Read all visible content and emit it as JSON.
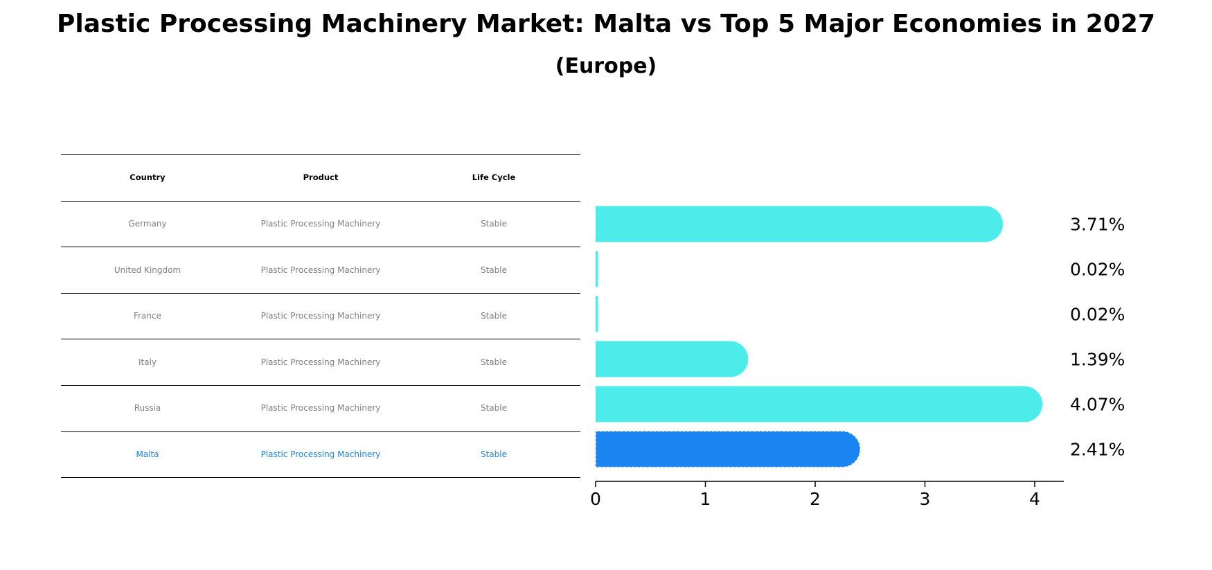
{
  "title": "Plastic Processing Machinery Market: Malta vs Top 5 Major Economies in 2027",
  "subtitle": "(Europe)",
  "table": {
    "headers": [
      "Country",
      "Product",
      "Life Cycle"
    ],
    "rows": [
      {
        "country": "Germany",
        "product": "Plastic Processing Machinery",
        "life_cycle": "Stable"
      },
      {
        "country": "United Kingdom",
        "product": "Plastic Processing Machinery",
        "life_cycle": "Stable"
      },
      {
        "country": "France",
        "product": "Plastic Processing Machinery",
        "life_cycle": "Stable"
      },
      {
        "country": "Italy",
        "product": "Plastic Processing Machinery",
        "life_cycle": "Stable"
      },
      {
        "country": "Russia",
        "product": "Plastic Processing Machinery",
        "life_cycle": "Stable"
      },
      {
        "country": "Malta",
        "product": "Plastic Processing Machinery",
        "life_cycle": "Stable"
      }
    ]
  },
  "colors": {
    "bar": "#4deceb",
    "highlight": "#1a84f0",
    "highlight_text": "#1a84de",
    "row_text": "#808080"
  },
  "chart_data": {
    "type": "bar",
    "orientation": "horizontal",
    "categories": [
      "Germany",
      "United Kingdom",
      "France",
      "Italy",
      "Russia",
      "Malta"
    ],
    "values": [
      3.71,
      0.02,
      0.02,
      1.39,
      4.07,
      2.41
    ],
    "value_labels": [
      "3.71%",
      "0.02%",
      "0.02%",
      "1.39%",
      "4.07%",
      "2.41%"
    ],
    "highlight": "Malta",
    "xticks": [
      0,
      1,
      2,
      3,
      4
    ],
    "xtick_labels": [
      "0",
      "1",
      "2",
      "3",
      "4"
    ],
    "xlim": [
      0,
      4.27
    ],
    "xlabel": "",
    "ylabel": "",
    "grid": false
  }
}
